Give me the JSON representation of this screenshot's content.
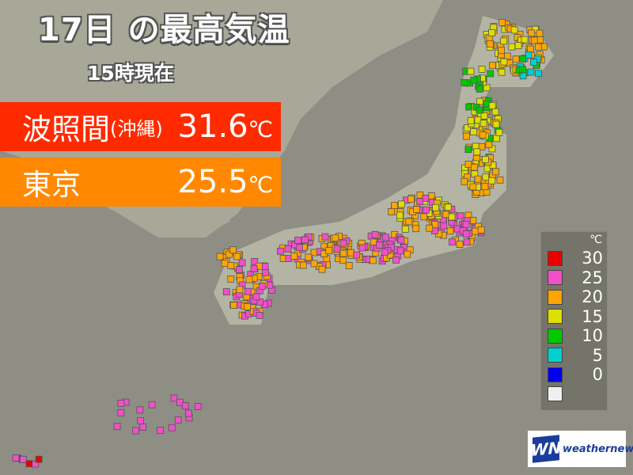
{
  "header": {
    "title": "17日 の最高気温",
    "subtitle": "15時現在"
  },
  "highlights": [
    {
      "name": "波照間",
      "region": "(沖縄)",
      "value": "31.6",
      "unit": "℃",
      "color": "#ff2a00"
    },
    {
      "name": "東京",
      "region": "",
      "value": "25.5",
      "unit": "℃",
      "color": "#ff8800"
    }
  ],
  "legend": {
    "unit": "℃",
    "items": [
      {
        "label": "30",
        "color": "#e80000"
      },
      {
        "label": "25",
        "color": "#f050c8"
      },
      {
        "label": "20",
        "color": "#ffa500"
      },
      {
        "label": "15",
        "color": "#dede00"
      },
      {
        "label": "10",
        "color": "#00c800"
      },
      {
        "label": "5",
        "color": "#00d0d0"
      },
      {
        "label": "0",
        "color": "#0000f0"
      },
      {
        "label": "",
        "color": "#f0f0f0"
      }
    ]
  },
  "logo": {
    "mark": "WN",
    "text": "weathernews"
  }
}
